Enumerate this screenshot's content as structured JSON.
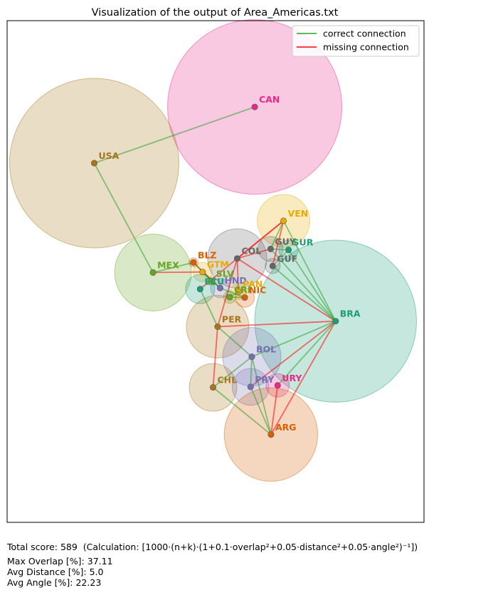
{
  "chart_data": {
    "type": "scatter",
    "title": "Visualization of the output of Area_Americas.txt",
    "legend": {
      "placement": "top-right",
      "items": [
        {
          "label": "correct connection",
          "color": "#2ca02c"
        },
        {
          "label": "missing connection",
          "color": "#ff0000"
        }
      ]
    },
    "xlim": [
      0,
      100
    ],
    "ylim": [
      0,
      100
    ],
    "grid": false,
    "nodes": [
      {
        "id": "CAN",
        "x": 59.4,
        "y": 82.8,
        "r": 20.9,
        "color": "#e7298a"
      },
      {
        "id": "USA",
        "x": 20.9,
        "y": 71.6,
        "r": 20.3,
        "color": "#a6761d"
      },
      {
        "id": "VEN",
        "x": 66.3,
        "y": 60.1,
        "r": 6.3,
        "color": "#e6ab02"
      },
      {
        "id": "GUY",
        "x": 63.2,
        "y": 54.5,
        "r": 3.0,
        "color": "#666666"
      },
      {
        "id": "SUR",
        "x": 67.5,
        "y": 54.3,
        "r": 2.3,
        "color": "#1b9e77"
      },
      {
        "id": "GUF",
        "x": 63.7,
        "y": 51.1,
        "r": 1.8,
        "color": "#666666"
      },
      {
        "id": "COL",
        "x": 55.2,
        "y": 52.6,
        "r": 7.1,
        "color": "#666666"
      },
      {
        "id": "MEX",
        "x": 35.0,
        "y": 49.8,
        "r": 9.2,
        "color": "#66a61e"
      },
      {
        "id": "BLZ",
        "x": 44.7,
        "y": 51.8,
        "r": 1.1,
        "color": "#d95f02"
      },
      {
        "id": "GTM",
        "x": 46.9,
        "y": 49.9,
        "r": 2.3,
        "color": "#e6ab02"
      },
      {
        "id": "SLV",
        "x": 49.1,
        "y": 48.1,
        "r": 1.0,
        "color": "#66a61e"
      },
      {
        "id": "HND",
        "x": 51.1,
        "y": 46.7,
        "r": 2.3,
        "color": "#7570b3"
      },
      {
        "id": "ECU",
        "x": 46.3,
        "y": 46.5,
        "r": 3.5,
        "color": "#1b9e77"
      },
      {
        "id": "PAN",
        "x": 55.5,
        "y": 46.0,
        "r": 1.9,
        "color": "#e6ab02"
      },
      {
        "id": "CRI",
        "x": 53.4,
        "y": 44.9,
        "r": 1.5,
        "color": "#66a61e"
      },
      {
        "id": "NIC",
        "x": 57.0,
        "y": 44.8,
        "r": 2.3,
        "color": "#d95f02"
      },
      {
        "id": "BRA",
        "x": 78.8,
        "y": 40.1,
        "r": 19.4,
        "color": "#1b9e77"
      },
      {
        "id": "PER",
        "x": 50.5,
        "y": 39.0,
        "r": 7.5,
        "color": "#a6761d"
      },
      {
        "id": "BOL",
        "x": 58.7,
        "y": 33.0,
        "r": 7.0,
        "color": "#7570b3"
      },
      {
        "id": "CHL",
        "x": 49.4,
        "y": 26.9,
        "r": 5.7,
        "color": "#a6761d"
      },
      {
        "id": "PRY",
        "x": 58.4,
        "y": 27.0,
        "r": 4.4,
        "color": "#7570b3"
      },
      {
        "id": "URY",
        "x": 64.9,
        "y": 27.3,
        "r": 2.8,
        "color": "#e7298a"
      },
      {
        "id": "ARG",
        "x": 63.3,
        "y": 17.5,
        "r": 11.2,
        "color": "#d95f02"
      }
    ],
    "correct_connections": [
      [
        "USA",
        "CAN"
      ],
      [
        "USA",
        "MEX"
      ],
      [
        "MEX",
        "BLZ"
      ],
      [
        "BLZ",
        "GTM"
      ],
      [
        "GTM",
        "SLV"
      ],
      [
        "SLV",
        "HND"
      ],
      [
        "GTM",
        "HND"
      ],
      [
        "HND",
        "NIC"
      ],
      [
        "NIC",
        "CRI"
      ],
      [
        "CRI",
        "PAN"
      ],
      [
        "VEN",
        "GUY"
      ],
      [
        "VEN",
        "BRA"
      ],
      [
        "GUY",
        "SUR"
      ],
      [
        "SUR",
        "GUF"
      ],
      [
        "GUY",
        "BRA"
      ],
      [
        "SUR",
        "BRA"
      ],
      [
        "GUF",
        "BRA"
      ],
      [
        "ECU",
        "PER"
      ],
      [
        "PER",
        "BOL"
      ],
      [
        "BOL",
        "BRA"
      ],
      [
        "BOL",
        "PRY"
      ],
      [
        "BOL",
        "CHL"
      ],
      [
        "PRY",
        "ARG"
      ],
      [
        "URY",
        "BRA"
      ],
      [
        "CHL",
        "ARG"
      ],
      [
        "BOL",
        "ARG"
      ]
    ],
    "missing_connections": [
      [
        "MEX",
        "GTM"
      ],
      [
        "BLZ",
        "HND"
      ],
      [
        "GTM",
        "SLV"
      ],
      [
        "COL",
        "PAN"
      ],
      [
        "COL",
        "ECU"
      ],
      [
        "COL",
        "PER"
      ],
      [
        "COL",
        "BRA"
      ],
      [
        "COL",
        "VEN"
      ],
      [
        "VEN",
        "GUF"
      ],
      [
        "PER",
        "BRA"
      ],
      [
        "PER",
        "CHL"
      ],
      [
        "PRY",
        "BRA"
      ],
      [
        "URY",
        "ARG"
      ],
      [
        "BRA",
        "ARG"
      ],
      [
        "COL",
        "GUY"
      ],
      [
        "VEN",
        "COL"
      ]
    ]
  },
  "summary": {
    "total_score": "Total score: 589  (Calculation: [1000·(n+k)·(1+0.1·overlap²+0.05·distance²+0.05·angle²)⁻¹])",
    "max_overlap": "Max Overlap [%]: 37.11",
    "avg_distance": "Avg Distance [%]: 5.0",
    "avg_angle": "Avg Angle [%]: 22.23"
  }
}
